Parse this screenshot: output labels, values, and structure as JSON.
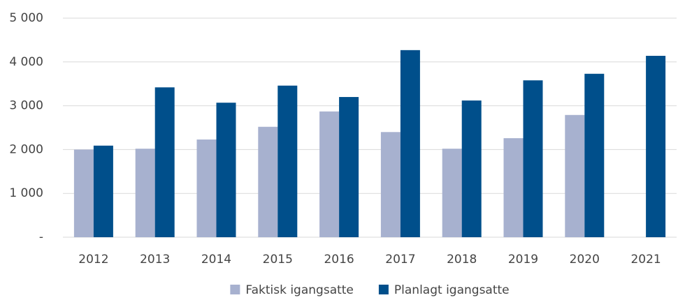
{
  "chart_data": {
    "type": "bar",
    "categories": [
      "2012",
      "2013",
      "2014",
      "2015",
      "2016",
      "2017",
      "2018",
      "2019",
      "2020",
      "2021"
    ],
    "series": [
      {
        "name": "Faktisk igangsatte",
        "color": "#a7b1cf",
        "values": [
          2000,
          2020,
          2230,
          2520,
          2870,
          2400,
          2020,
          2260,
          2790,
          null
        ]
      },
      {
        "name": "Planlagt igangsatte",
        "color": "#004f8b",
        "values": [
          2090,
          3420,
          3070,
          3460,
          3200,
          4270,
          3120,
          3580,
          3730,
          4140
        ]
      }
    ],
    "ylim": [
      0,
      5000
    ],
    "yticks": [
      {
        "value": 0,
        "label": "-"
      },
      {
        "value": 1000,
        "label": "1 000"
      },
      {
        "value": 2000,
        "label": "2 000"
      },
      {
        "value": 3000,
        "label": "3 000"
      },
      {
        "value": 4000,
        "label": "4 000"
      },
      {
        "value": 5000,
        "label": "5 000"
      }
    ],
    "grid": true,
    "legend": "bottom"
  }
}
